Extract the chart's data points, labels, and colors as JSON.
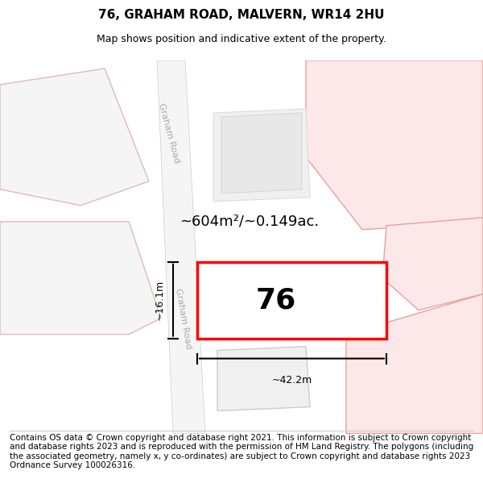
{
  "title": "76, GRAHAM ROAD, MALVERN, WR14 2HU",
  "subtitle": "Map shows position and indicative extent of the property.",
  "footer": "Contains OS data © Crown copyright and database right 2021. This information is subject to Crown copyright and database rights 2023 and is reproduced with the permission of HM Land Registry. The polygons (including the associated geometry, namely x, y co-ordinates) are subject to Crown copyright and database rights 2023 Ordnance Survey 100026316.",
  "background_color": "#ffffff",
  "map_bg": "#f8f8f8",
  "road_label_top": "Graham Road",
  "road_label_left": "Graham Road",
  "property_number": "76",
  "area_text": "~604m²/~0.149ac.",
  "dim_width": "~42.2m",
  "dim_height": "~16.1m",
  "title_fontsize": 11,
  "subtitle_fontsize": 9,
  "footer_fontsize": 7.5,
  "highlight_color": "#ff0000",
  "highlight_fill": "#ffffff",
  "neighbor_stroke": "#e8a0a0",
  "neighbor_fill": "#fce8e8",
  "road_color": "#ffffff",
  "outline_color": "#cccccc"
}
